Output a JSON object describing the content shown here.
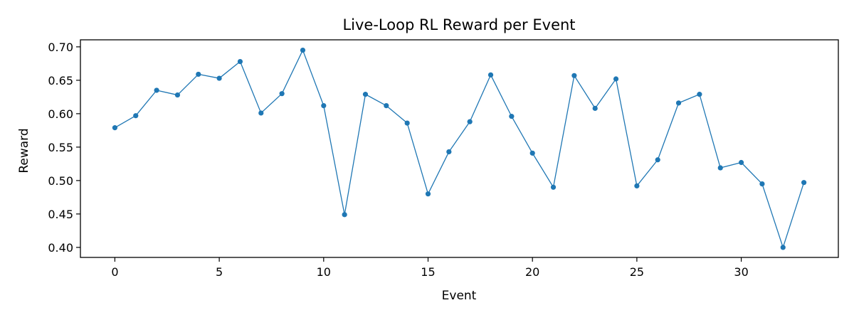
{
  "chart_data": {
    "type": "line",
    "title": "Live-Loop RL Reward per Event",
    "xlabel": "Event",
    "ylabel": "Reward",
    "xlim": [
      -1.65,
      34.65
    ],
    "ylim": [
      0.385,
      0.7105
    ],
    "x_ticks": [
      0,
      5,
      10,
      15,
      20,
      25,
      30
    ],
    "y_ticks": [
      0.4,
      0.45,
      0.5,
      0.55,
      0.6,
      0.65,
      0.7
    ],
    "x_tick_labels": [
      "0",
      "5",
      "10",
      "15",
      "20",
      "25",
      "30"
    ],
    "y_tick_labels": [
      "0.40",
      "0.45",
      "0.50",
      "0.55",
      "0.60",
      "0.65",
      "0.70"
    ],
    "grid": false,
    "series": [
      {
        "color": "#1f77b4",
        "marker": "circle",
        "x": [
          0,
          1,
          2,
          3,
          4,
          5,
          6,
          7,
          8,
          9,
          10,
          11,
          12,
          13,
          14,
          15,
          16,
          17,
          18,
          19,
          20,
          21,
          22,
          23,
          24,
          25,
          26,
          27,
          28,
          29,
          30,
          31,
          32,
          33
        ],
        "values": [
          0.579,
          0.597,
          0.635,
          0.628,
          0.659,
          0.653,
          0.678,
          0.601,
          0.63,
          0.695,
          0.612,
          0.449,
          0.629,
          0.612,
          0.586,
          0.48,
          0.543,
          0.588,
          0.658,
          0.596,
          0.541,
          0.49,
          0.657,
          0.608,
          0.652,
          0.492,
          0.531,
          0.616,
          0.629,
          0.519,
          0.527,
          0.495,
          0.4,
          0.497
        ]
      }
    ]
  }
}
